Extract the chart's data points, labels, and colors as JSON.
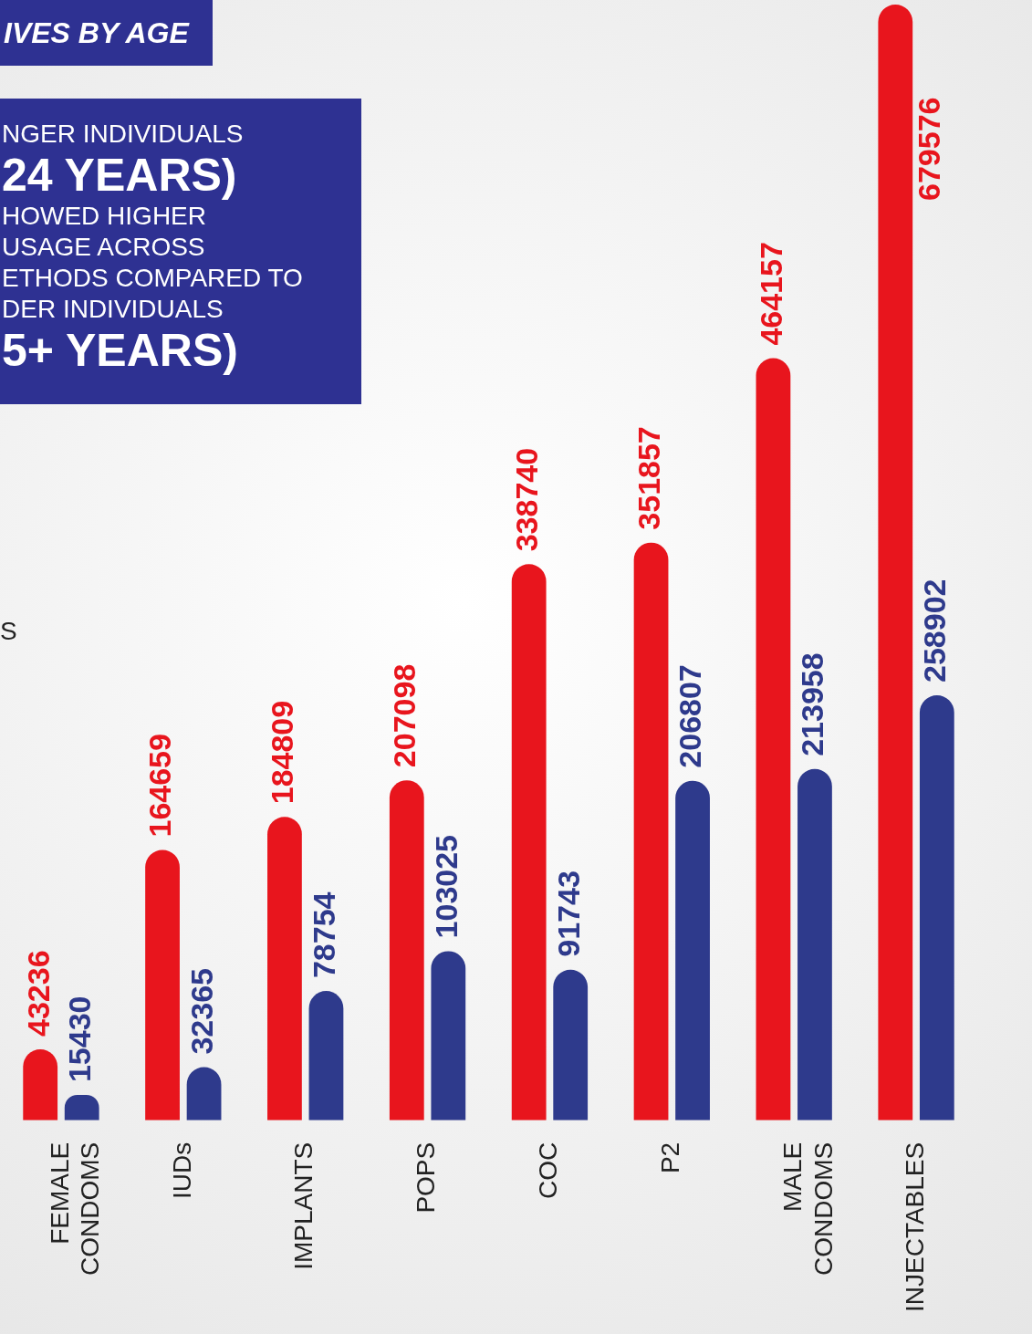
{
  "chart_data": {
    "type": "bar",
    "title": "IVES BY AGE",
    "annotations": [
      "NGER INDIVIDUALS",
      "24 YEARS)",
      "HOWED HIGHER",
      "USAGE ACROSS",
      "ETHODS COMPARED TO",
      "DER INDIVIDUALS",
      "5+ YEARS)",
      "S"
    ],
    "categories": [
      "FEMALE CONDOMS",
      "IUDs",
      "IMPLANTS",
      "POPS",
      "COC",
      "P2",
      "MALE CONDOMS",
      "INJECTABLES"
    ],
    "series": [
      {
        "color": "#e8151d",
        "values": [
          43236,
          164659,
          184809,
          207098,
          338740,
          351857,
          464157,
          679576
        ]
      },
      {
        "color": "#2e3a8c",
        "values": [
          15430,
          32365,
          78754,
          103025,
          91743,
          206807,
          213958,
          258902
        ]
      }
    ],
    "data_labels": true,
    "grid": false,
    "legend": false,
    "tick_labels": "x"
  }
}
